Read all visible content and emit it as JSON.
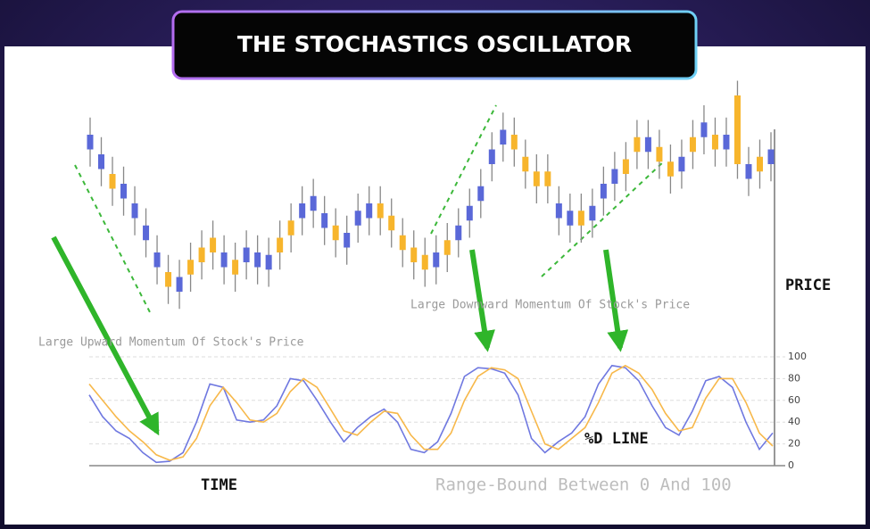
{
  "title": "THE STOCHASTICS OSCILLATOR",
  "chart_data": [
    {
      "type": "candlestick",
      "y_label": "PRICE",
      "annotation": "Large Upward Momentum Of Stock's Price",
      "annotation_2": "Large Downward Momentum Of Stock's Price",
      "up_color": "#f7b52c",
      "down_color": "#5a68d8",
      "ylim": [
        0,
        100
      ],
      "open": [
        76,
        68,
        54,
        56,
        48,
        39,
        28,
        14,
        18,
        19,
        24,
        28,
        28,
        19,
        30,
        28,
        27,
        28,
        35,
        48,
        51,
        44,
        33,
        36,
        45,
        48,
        42,
        37,
        29,
        24,
        21,
        28,
        27,
        39,
        47,
        55,
        70,
        78,
        70,
        61,
        55,
        55,
        48,
        45,
        39,
        47,
        56,
        62,
        60,
        69,
        75,
        65,
        59,
        67,
        69,
        81,
        70,
        76,
        64,
        64,
        61,
        70
      ],
      "high": [
        83,
        75,
        67,
        63,
        55,
        46,
        35,
        27,
        25,
        32,
        37,
        41,
        35,
        32,
        37,
        35,
        34,
        41,
        48,
        55,
        58,
        51,
        46,
        43,
        52,
        55,
        55,
        50,
        42,
        37,
        34,
        35,
        40,
        46,
        54,
        62,
        77,
        85,
        83,
        74,
        68,
        68,
        55,
        52,
        52,
        54,
        63,
        69,
        73,
        82,
        82,
        78,
        72,
        74,
        82,
        88,
        83,
        83,
        98,
        71,
        74,
        77
      ],
      "low": [
        63,
        55,
        47,
        43,
        35,
        26,
        15,
        7,
        5,
        12,
        17,
        21,
        15,
        12,
        17,
        15,
        14,
        21,
        28,
        35,
        38,
        31,
        26,
        23,
        32,
        35,
        35,
        30,
        22,
        17,
        14,
        15,
        20,
        26,
        34,
        42,
        57,
        65,
        63,
        54,
        48,
        48,
        35,
        32,
        32,
        34,
        43,
        49,
        53,
        62,
        62,
        58,
        52,
        54,
        62,
        68,
        63,
        63,
        58,
        51,
        54,
        57
      ],
      "close": [
        70,
        62,
        60,
        50,
        42,
        33,
        22,
        20,
        12,
        25,
        30,
        34,
        22,
        25,
        24,
        22,
        21,
        34,
        41,
        42,
        45,
        38,
        39,
        30,
        39,
        42,
        48,
        43,
        35,
        30,
        27,
        22,
        33,
        33,
        41,
        49,
        64,
        72,
        76,
        67,
        61,
        61,
        42,
        39,
        45,
        41,
        50,
        56,
        66,
        75,
        69,
        71,
        65,
        61,
        75,
        75,
        76,
        70,
        92,
        58,
        67,
        64
      ]
    },
    {
      "type": "line",
      "x_label": "TIME",
      "annotation": "%D LINE",
      "annotation_2": "Range-Bound Between 0 And 100",
      "ylim": [
        0,
        100
      ],
      "yticks": [
        0,
        20,
        40,
        60,
        80,
        100
      ],
      "grid": true,
      "series": [
        {
          "color": "#6f78e0",
          "values": [
            65,
            45,
            32,
            25,
            12,
            3,
            4,
            12,
            40,
            75,
            72,
            42,
            40,
            42,
            55,
            80,
            78,
            60,
            40,
            22,
            35,
            45,
            52,
            40,
            15,
            12,
            22,
            48,
            82,
            90,
            89,
            85,
            65,
            25,
            12,
            22,
            30,
            45,
            75,
            92,
            90,
            78,
            55,
            35,
            28,
            50,
            78,
            82,
            72,
            40,
            15,
            30
          ]
        },
        {
          "color": "#f7b84a",
          "values": [
            75,
            60,
            45,
            32,
            22,
            10,
            5,
            8,
            25,
            55,
            72,
            58,
            42,
            40,
            48,
            68,
            80,
            72,
            52,
            32,
            28,
            40,
            50,
            48,
            28,
            15,
            15,
            30,
            60,
            82,
            90,
            88,
            80,
            50,
            20,
            15,
            25,
            35,
            58,
            85,
            92,
            85,
            70,
            48,
            32,
            35,
            62,
            80,
            80,
            58,
            30,
            18
          ]
        }
      ]
    }
  ]
}
